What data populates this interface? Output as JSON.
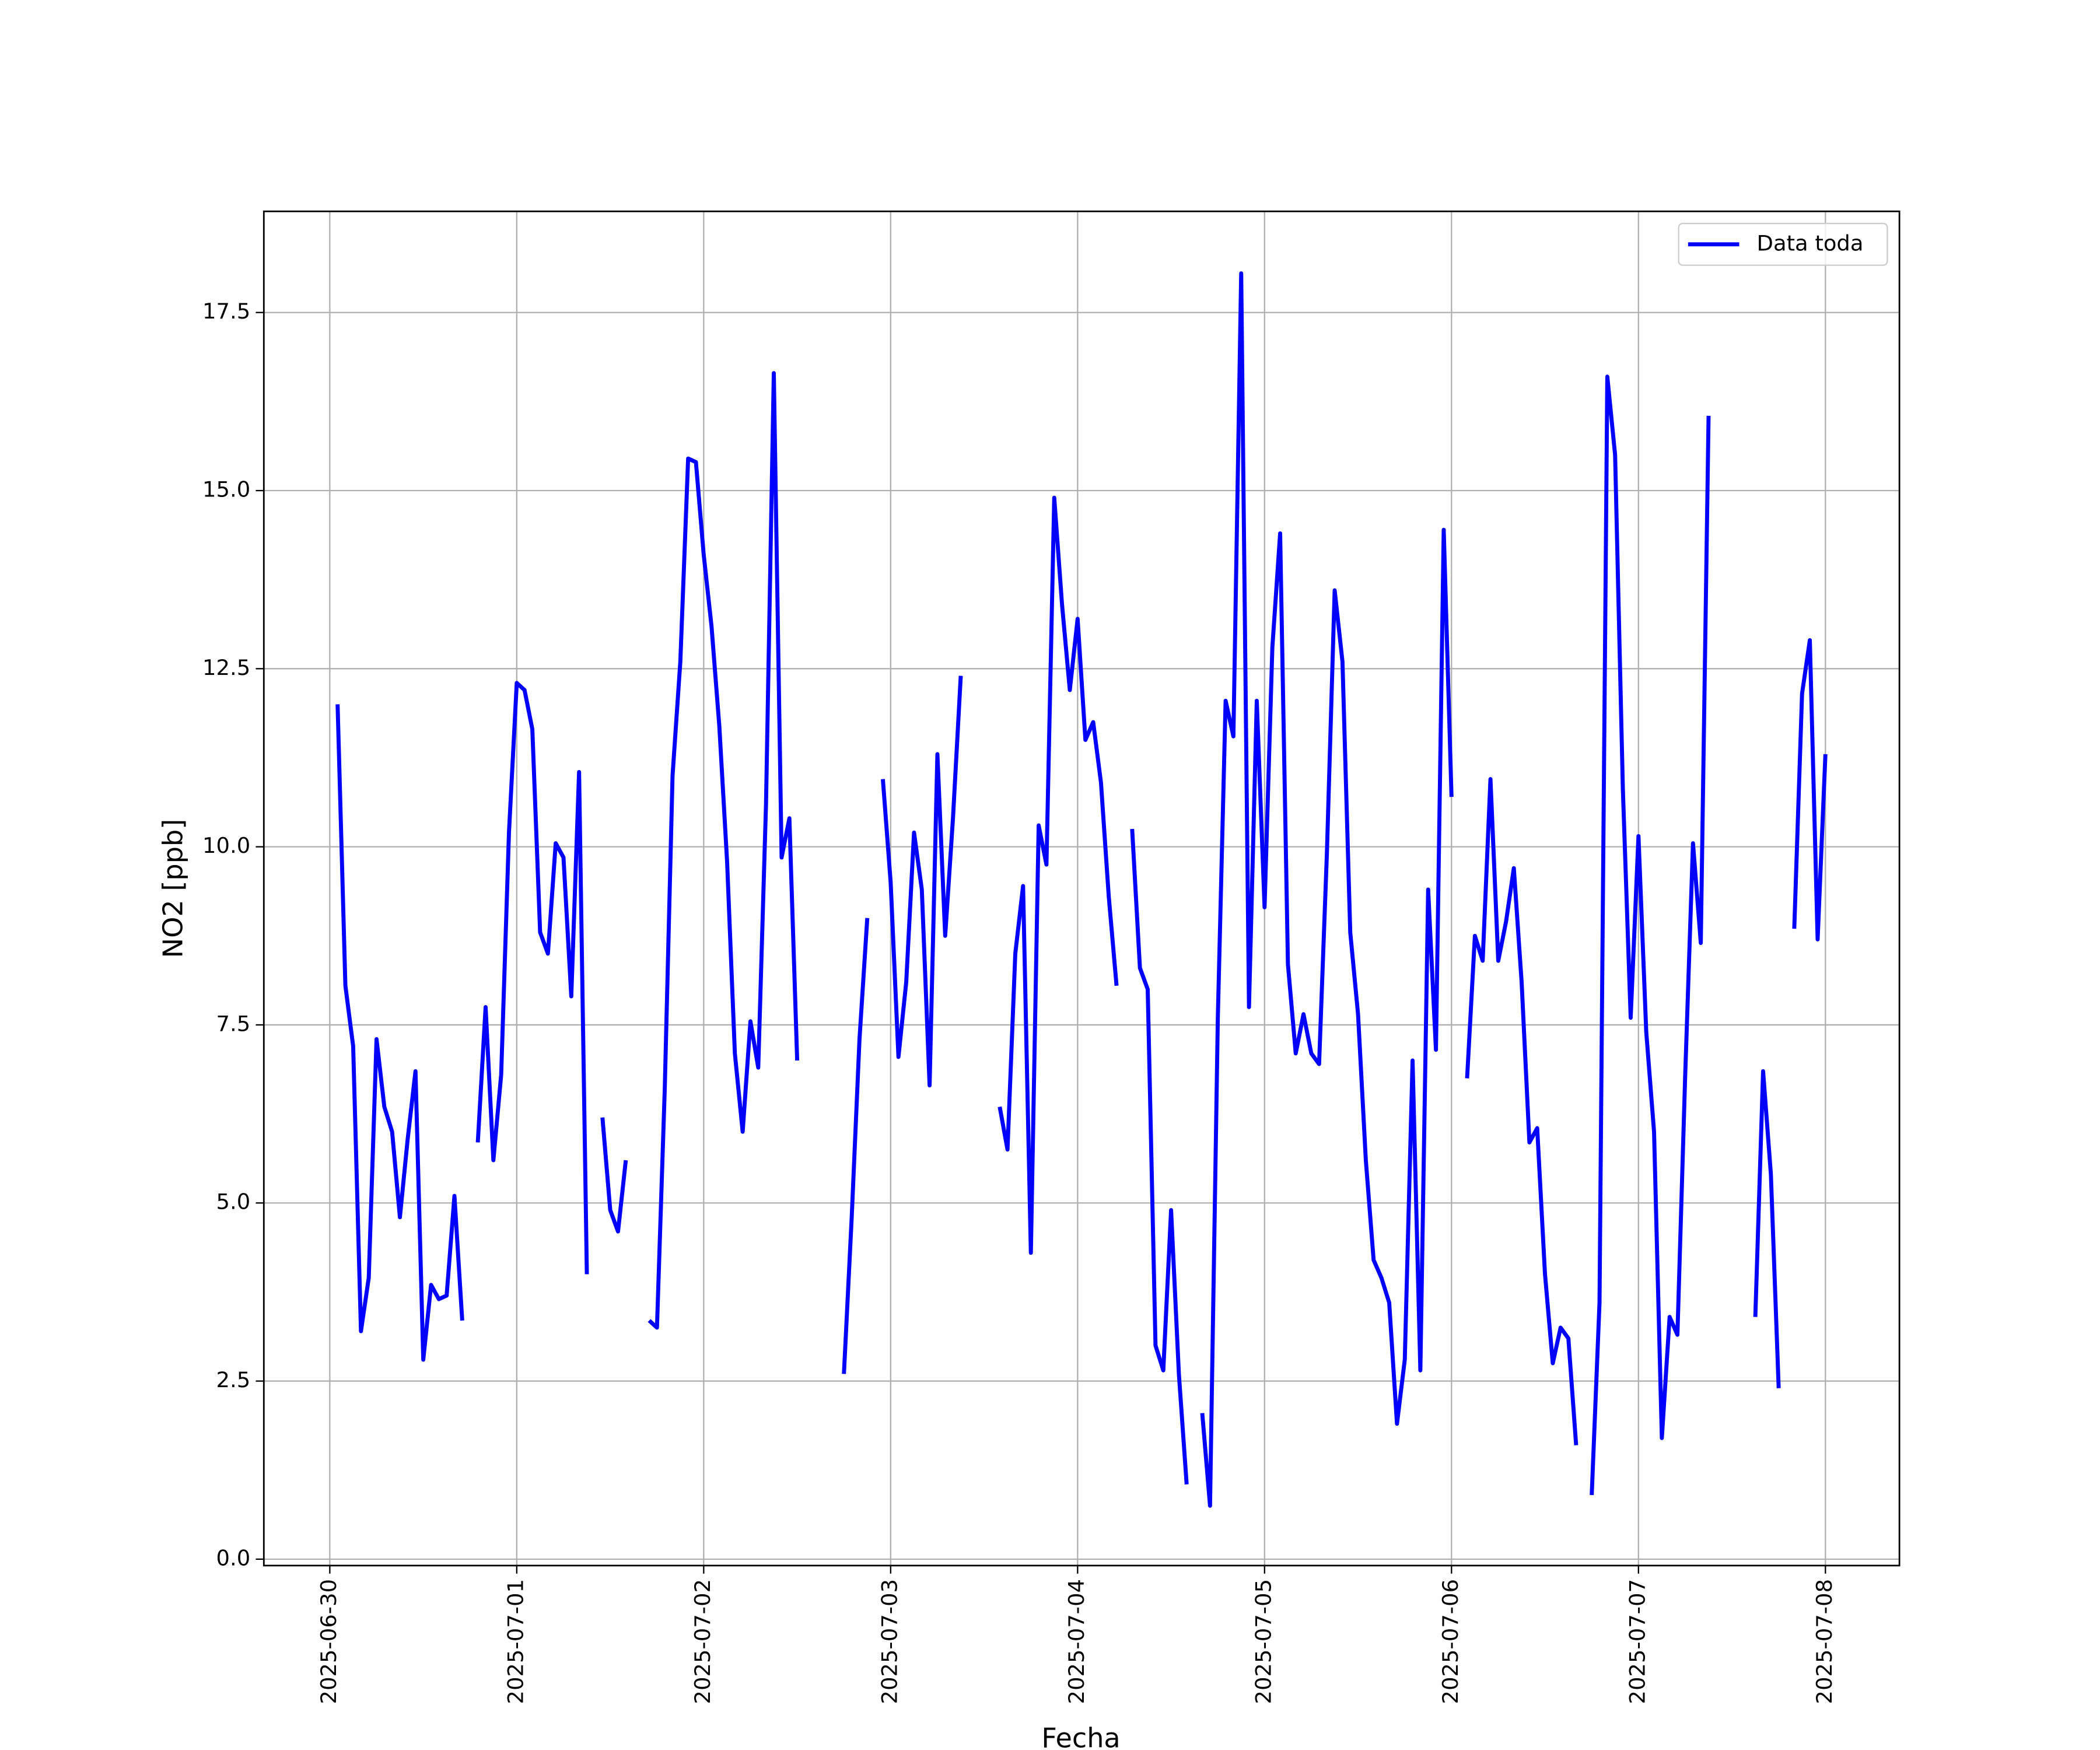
{
  "chart_data": {
    "type": "line",
    "x_label": "Fecha",
    "y_label": "NO2 [ppb]",
    "grid": true,
    "legend": "upper right",
    "xlim": [
      "2025-06-29 15:32",
      "2025-07-08 09:30"
    ],
    "xticks": [
      "2025-06-30",
      "2025-07-01",
      "2025-07-02",
      "2025-07-03",
      "2025-07-04",
      "2025-07-05",
      "2025-07-06",
      "2025-07-07",
      "2025-07-08"
    ],
    "ylim": [
      -0.09,
      18.92
    ],
    "yticks": [
      {
        "value": 0,
        "label": "0.0"
      },
      2.5,
      {
        "value": 5,
        "label": "5.0"
      },
      7.5,
      {
        "value": 10,
        "label": "10.0"
      },
      12.5,
      {
        "value": 15,
        "label": "15.0"
      },
      17.5
    ],
    "x": [
      "2025-06-30 01:00",
      "2025-06-30 02:00",
      "2025-06-30 03:00",
      "2025-06-30 04:00",
      "2025-06-30 05:00",
      "2025-06-30 06:00",
      "2025-06-30 07:00",
      "2025-06-30 08:00",
      "2025-06-30 09:00",
      "2025-06-30 10:00",
      "2025-06-30 11:00",
      "2025-06-30 12:00",
      "2025-06-30 13:00",
      "2025-06-30 14:00",
      "2025-06-30 15:00",
      "2025-06-30 16:00",
      "2025-06-30 17:00",
      "2025-06-30 18:00",
      "2025-06-30 19:00",
      "2025-06-30 20:00",
      "2025-06-30 21:00",
      "2025-06-30 22:00",
      "2025-06-30 23:00",
      "2025-07-01 00:00",
      "2025-07-01 01:00",
      "2025-07-01 02:00",
      "2025-07-01 03:00",
      "2025-07-01 04:00",
      "2025-07-01 05:00",
      "2025-07-01 06:00",
      "2025-07-01 07:00",
      "2025-07-01 08:00",
      "2025-07-01 09:00",
      "2025-07-01 10:00",
      "2025-07-01 11:00",
      "2025-07-01 12:00",
      "2025-07-01 13:00",
      "2025-07-01 14:00",
      "2025-07-01 15:00",
      "2025-07-01 17:00",
      "2025-07-01 18:00",
      "2025-07-01 19:00",
      "2025-07-01 20:00",
      "2025-07-01 21:00",
      "2025-07-01 22:00",
      "2025-07-01 23:00",
      "2025-07-02 00:00",
      "2025-07-02 01:00",
      "2025-07-02 02:00",
      "2025-07-02 03:00",
      "2025-07-02 04:00",
      "2025-07-02 05:00",
      "2025-07-02 06:00",
      "2025-07-02 07:00",
      "2025-07-02 08:00",
      "2025-07-02 09:00",
      "2025-07-02 10:00",
      "2025-07-02 11:00",
      "2025-07-02 12:00",
      "2025-07-02 13:00",
      "2025-07-02 18:00",
      "2025-07-02 19:00",
      "2025-07-02 20:00",
      "2025-07-02 21:00",
      "2025-07-02 22:00",
      "2025-07-02 23:00",
      "2025-07-03 00:00",
      "2025-07-03 01:00",
      "2025-07-03 02:00",
      "2025-07-03 03:00",
      "2025-07-03 04:00",
      "2025-07-03 05:00",
      "2025-07-03 06:00",
      "2025-07-03 07:00",
      "2025-07-03 08:00",
      "2025-07-03 09:00",
      "2025-07-03 10:00",
      "2025-07-03 14:00",
      "2025-07-03 15:00",
      "2025-07-03 16:00",
      "2025-07-03 17:00",
      "2025-07-03 18:00",
      "2025-07-03 19:00",
      "2025-07-03 20:00",
      "2025-07-03 21:00",
      "2025-07-03 22:00",
      "2025-07-03 23:00",
      "2025-07-04 00:00",
      "2025-07-04 01:00",
      "2025-07-04 02:00",
      "2025-07-04 03:00",
      "2025-07-04 04:00",
      "2025-07-04 05:00",
      "2025-07-04 06:00",
      "2025-07-04 07:00",
      "2025-07-04 08:00",
      "2025-07-04 09:00",
      "2025-07-04 10:00",
      "2025-07-04 11:00",
      "2025-07-04 12:00",
      "2025-07-04 13:00",
      "2025-07-04 14:00",
      "2025-07-04 15:00",
      "2025-07-04 16:00",
      "2025-07-04 17:00",
      "2025-07-04 18:00",
      "2025-07-04 19:00",
      "2025-07-04 20:00",
      "2025-07-04 21:00",
      "2025-07-04 22:00",
      "2025-07-04 23:00",
      "2025-07-05 00:00",
      "2025-07-05 01:00",
      "2025-07-05 02:00",
      "2025-07-05 03:00",
      "2025-07-05 04:00",
      "2025-07-05 05:00",
      "2025-07-05 06:00",
      "2025-07-05 07:00",
      "2025-07-05 08:00",
      "2025-07-05 09:00",
      "2025-07-05 10:00",
      "2025-07-05 11:00",
      "2025-07-05 12:00",
      "2025-07-05 13:00",
      "2025-07-05 14:00",
      "2025-07-05 15:00",
      "2025-07-05 16:00",
      "2025-07-05 17:00",
      "2025-07-05 18:00",
      "2025-07-05 19:00",
      "2025-07-05 20:00",
      "2025-07-05 21:00",
      "2025-07-05 22:00",
      "2025-07-05 23:00",
      "2025-07-06 00:00",
      "2025-07-06 01:00",
      "2025-07-06 02:00",
      "2025-07-06 03:00",
      "2025-07-06 04:00",
      "2025-07-06 05:00",
      "2025-07-06 06:00",
      "2025-07-06 07:00",
      "2025-07-06 08:00",
      "2025-07-06 09:00",
      "2025-07-06 10:00",
      "2025-07-06 11:00",
      "2025-07-06 12:00",
      "2025-07-06 13:00",
      "2025-07-06 14:00",
      "2025-07-06 15:00",
      "2025-07-06 16:00",
      "2025-07-06 17:00",
      "2025-07-06 18:00",
      "2025-07-06 19:00",
      "2025-07-06 20:00",
      "2025-07-06 21:00",
      "2025-07-06 22:00",
      "2025-07-06 23:00",
      "2025-07-07 00:00",
      "2025-07-07 01:00",
      "2025-07-07 02:00",
      "2025-07-07 03:00",
      "2025-07-07 04:00",
      "2025-07-07 05:00",
      "2025-07-07 06:00",
      "2025-07-07 07:00",
      "2025-07-07 08:00",
      "2025-07-07 09:00",
      "2025-07-07 10:00",
      "2025-07-07 15:00",
      "2025-07-07 16:00",
      "2025-07-07 17:00",
      "2025-07-07 18:00",
      "2025-07-07 19:00",
      "2025-07-07 20:00",
      "2025-07-07 21:00",
      "2025-07-07 22:00",
      "2025-07-07 23:00",
      "2025-07-08 00:00"
    ],
    "series": [
      {
        "name": "Data toda",
        "color": "#0000ff",
        "values": [
          12.0,
          8.05,
          7.2,
          3.2,
          3.95,
          7.3,
          6.35,
          6.0,
          4.8,
          5.9,
          6.85,
          2.8,
          3.85,
          3.65,
          3.7,
          5.1,
          3.35,
          null,
          5.85,
          7.75,
          5.6,
          6.8,
          10.2,
          12.3,
          12.2,
          11.65,
          8.8,
          8.5,
          10.05,
          9.85,
          7.9,
          11.05,
          4.0,
          null,
          6.2,
          4.9,
          4.6,
          5.6,
          null,
          3.35,
          3.25,
          6.6,
          11.0,
          12.6,
          15.45,
          15.4,
          14.1,
          13.1,
          11.7,
          9.8,
          7.1,
          6.0,
          7.55,
          6.9,
          10.6,
          16.65,
          9.85,
          10.4,
          7.0,
          null,
          2.6,
          4.8,
          7.3,
          9.0,
          null,
          10.95,
          9.5,
          7.05,
          8.1,
          10.2,
          9.4,
          6.65,
          11.3,
          8.75,
          10.4,
          12.4,
          null,
          6.35,
          5.75,
          8.5,
          9.45,
          4.3,
          10.3,
          9.75,
          14.9,
          13.4,
          12.2,
          13.2,
          11.5,
          11.75,
          10.9,
          9.3,
          8.05,
          null,
          10.25,
          8.3,
          8.0,
          3.0,
          2.65,
          4.9,
          2.6,
          1.05,
          null,
          2.05,
          0.75,
          7.6,
          12.05,
          11.55,
          18.05,
          7.75,
          12.05,
          9.15,
          12.8,
          14.4,
          8.35,
          7.1,
          7.65,
          7.1,
          6.95,
          9.9,
          13.6,
          12.6,
          8.8,
          7.65,
          5.6,
          4.2,
          3.95,
          3.6,
          1.9,
          2.8,
          7.0,
          2.65,
          9.4,
          7.15,
          14.45,
          10.7,
          null,
          6.75,
          8.75,
          8.4,
          10.95,
          8.4,
          8.95,
          9.7,
          8.1,
          5.85,
          6.05,
          4.0,
          2.75,
          3.25,
          3.1,
          1.6,
          null,
          0.9,
          3.6,
          16.6,
          15.5,
          10.8,
          7.6,
          10.15,
          7.4,
          6.0,
          1.7,
          3.4,
          3.15,
          6.8,
          10.05,
          8.65,
          16.05,
          null,
          3.4,
          6.85,
          5.4,
          2.4,
          null,
          8.85,
          12.15,
          12.9,
          8.7,
          11.3
        ]
      }
    ]
  }
}
